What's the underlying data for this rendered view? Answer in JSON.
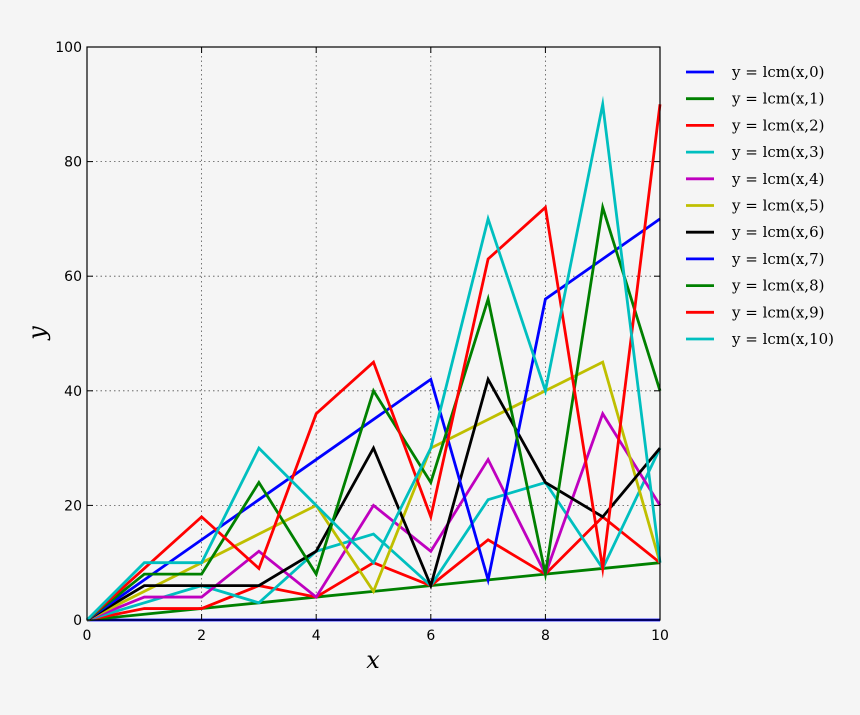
{
  "chart_data": {
    "type": "line",
    "xlabel": "x",
    "ylabel": "y",
    "xlim": [
      0,
      10
    ],
    "ylim": [
      0,
      100
    ],
    "xticks": [
      "0",
      "2",
      "4",
      "6",
      "8",
      "10"
    ],
    "yticks": [
      "0",
      "20",
      "40",
      "60",
      "80",
      "100"
    ],
    "grid": true,
    "legend_position": "outside-right",
    "x": [
      0,
      1,
      2,
      3,
      4,
      5,
      6,
      7,
      8,
      9,
      10
    ],
    "series": [
      {
        "name": "y = lcm(x,0)",
        "color": "#0000ff",
        "values": [
          0,
          0,
          0,
          0,
          0,
          0,
          0,
          0,
          0,
          0,
          0
        ]
      },
      {
        "name": "y = lcm(x,1)",
        "color": "#008000",
        "values": [
          0,
          1,
          2,
          3,
          4,
          5,
          6,
          7,
          8,
          9,
          10
        ]
      },
      {
        "name": "y = lcm(x,2)",
        "color": "#ff0000",
        "values": [
          0,
          2,
          2,
          6,
          4,
          10,
          6,
          14,
          8,
          18,
          10
        ]
      },
      {
        "name": "y = lcm(x,3)",
        "color": "#00bfbf",
        "values": [
          0,
          3,
          6,
          3,
          12,
          15,
          6,
          21,
          24,
          9,
          30
        ]
      },
      {
        "name": "y = lcm(x,4)",
        "color": "#bf00bf",
        "values": [
          0,
          4,
          4,
          12,
          4,
          20,
          12,
          28,
          8,
          36,
          20
        ]
      },
      {
        "name": "y = lcm(x,5)",
        "color": "#bfbf00",
        "values": [
          0,
          5,
          10,
          15,
          20,
          5,
          30,
          35,
          40,
          45,
          10
        ]
      },
      {
        "name": "y = lcm(x,6)",
        "color": "#000000",
        "values": [
          0,
          6,
          6,
          6,
          12,
          30,
          6,
          42,
          24,
          18,
          30
        ]
      },
      {
        "name": "y = lcm(x,7)",
        "color": "#0000ff",
        "values": [
          0,
          7,
          14,
          21,
          28,
          35,
          42,
          7,
          56,
          63,
          70
        ]
      },
      {
        "name": "y = lcm(x,8)",
        "color": "#008000",
        "values": [
          0,
          8,
          8,
          24,
          8,
          40,
          24,
          56,
          8,
          72,
          40
        ]
      },
      {
        "name": "y = lcm(x,9)",
        "color": "#ff0000",
        "values": [
          0,
          9,
          18,
          9,
          36,
          45,
          18,
          63,
          72,
          9,
          90
        ]
      },
      {
        "name": "y = lcm(x,10)",
        "color": "#00bfbf",
        "values": [
          0,
          10,
          10,
          30,
          20,
          10,
          30,
          70,
          40,
          90,
          10
        ]
      }
    ]
  }
}
